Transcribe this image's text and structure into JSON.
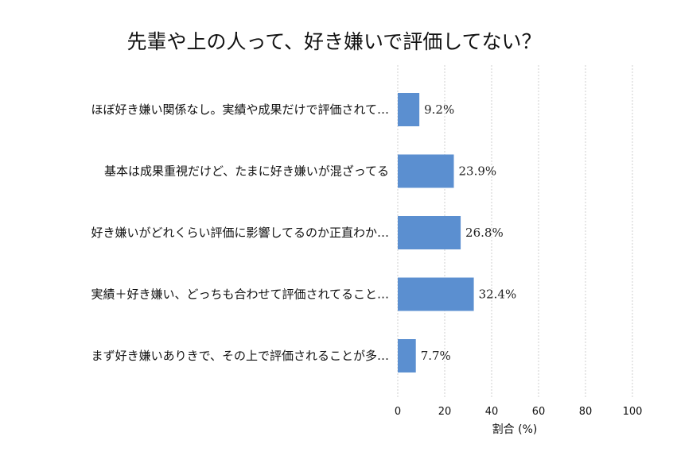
{
  "chart_data": {
    "type": "bar",
    "orientation": "horizontal",
    "title": "先輩や上の人って、好き嫌いで評価してない？",
    "xlabel": "割合 (%)",
    "ylabel": "",
    "xlim": [
      0,
      100
    ],
    "xticks": [
      "0",
      "20",
      "40",
      "60",
      "80",
      "100"
    ],
    "grid": true,
    "bar_color": "#5b8fd0",
    "categories": [
      "ほぼ好き嫌い関係なし。実績や成果だけで評価されて…",
      "基本は成果重視だけど、たまに好き嫌いが混ざってる",
      "好き嫌いがどれくらい評価に影響してるのか正直わか…",
      "実績＋好き嫌い、どっちも合わせて評価されてること…",
      "まず好き嫌いありきで、その上で評価されることが多…"
    ],
    "values": [
      9.2,
      23.9,
      26.8,
      32.4,
      7.7
    ],
    "value_labels": [
      "9.2%",
      "23.9%",
      "26.8%",
      "32.4%",
      "7.7%"
    ]
  }
}
